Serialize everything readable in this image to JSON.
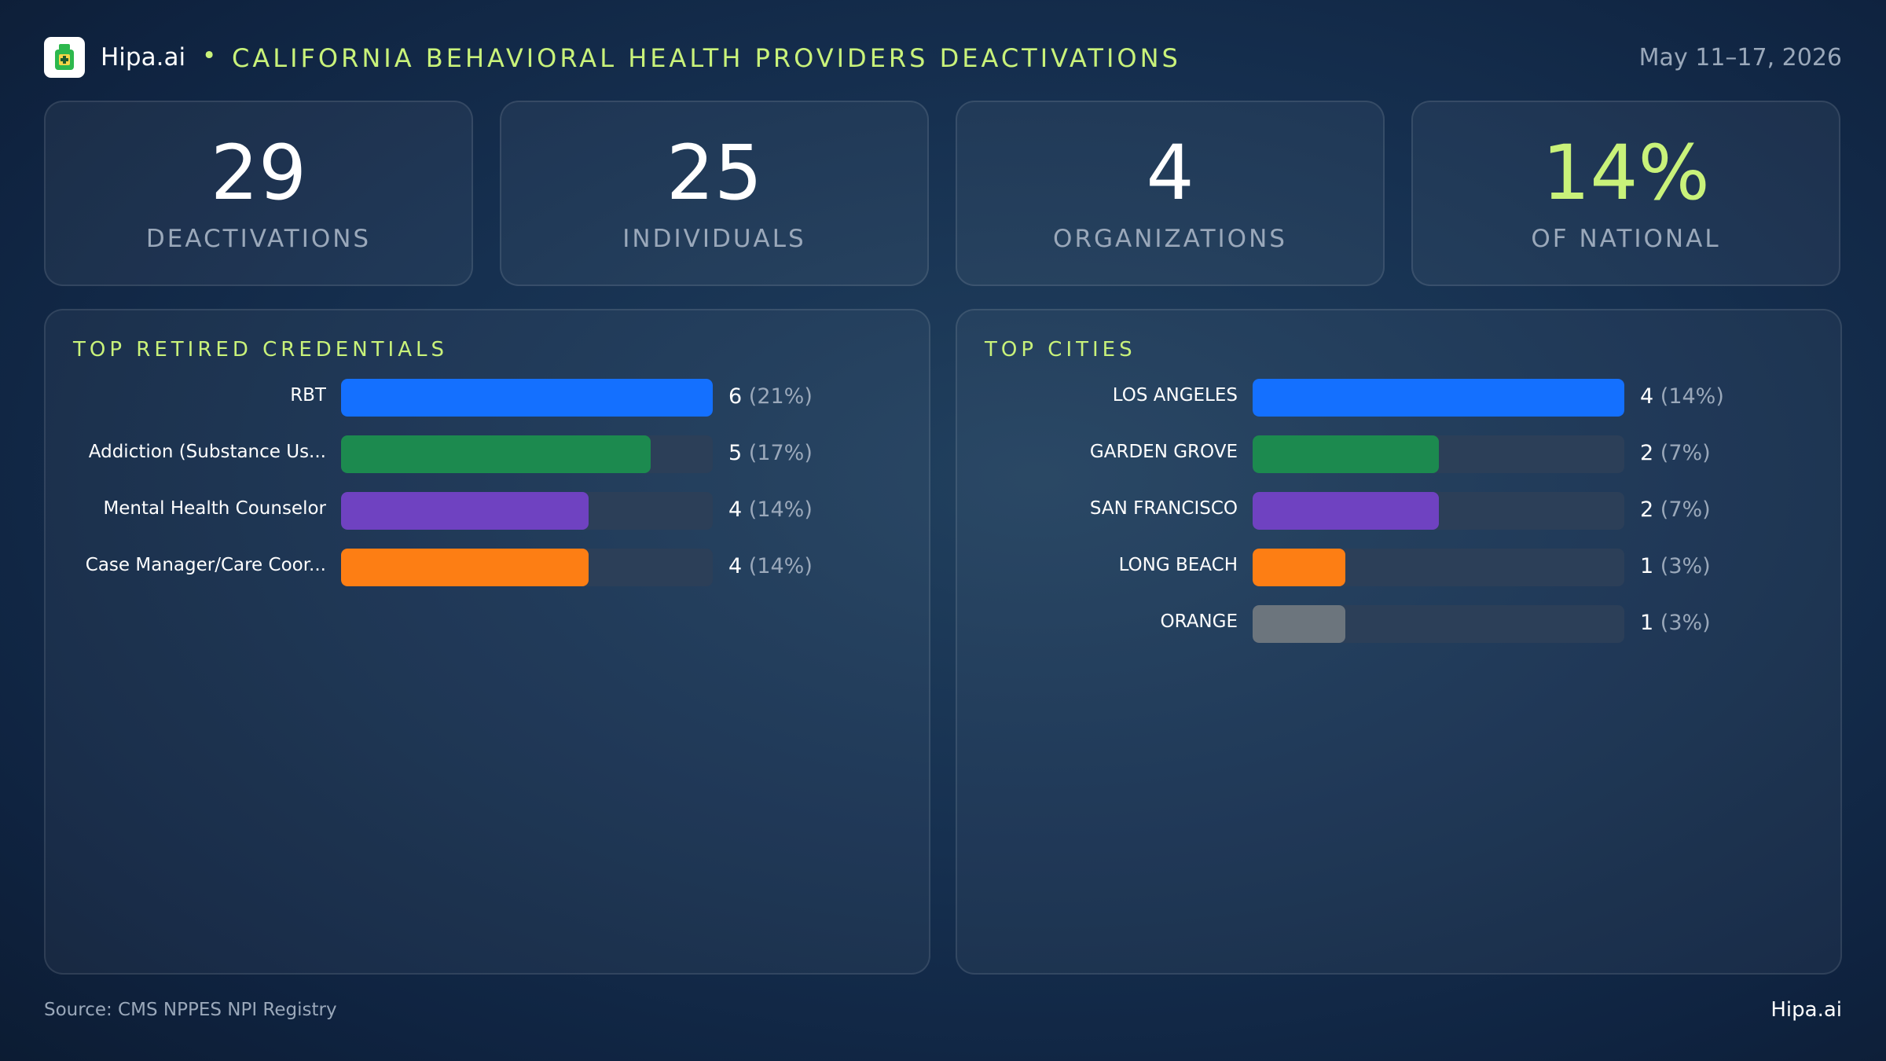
{
  "header": {
    "brand": "Hipa.ai",
    "separator": "•",
    "title": "CALIFORNIA BEHAVIORAL HEALTH PROVIDERS DEACTIVATIONS",
    "date": "May 11–17, 2026"
  },
  "kpis": [
    {
      "value": "29",
      "label": "DEACTIVATIONS"
    },
    {
      "value": "25",
      "label": "INDIVIDUALS"
    },
    {
      "value": "4",
      "label": "ORGANIZATIONS"
    },
    {
      "value": "14%",
      "label": "OF NATIONAL"
    }
  ],
  "colors": {
    "accent": "#c9f27a",
    "bar_blue": "#1470ff",
    "bar_green": "#1c8a4f",
    "bar_purple": "#6f42c1",
    "bar_orange": "#fd7e14",
    "bar_gray": "#6c757d",
    "track": "#2c3f58"
  },
  "chart_data": [
    {
      "type": "bar",
      "orientation": "horizontal",
      "title": "TOP RETIRED CREDENTIALS",
      "categories": [
        "RBT",
        "Addiction (Substance Us...",
        "Mental Health Counselor",
        "Case Manager/Care Coor..."
      ],
      "values": [
        6,
        5,
        4,
        4
      ],
      "value_labels": [
        "6",
        "5",
        "4",
        "4"
      ],
      "percent_labels": [
        "(21%)",
        "(17%)",
        "(14%)",
        "(14%)"
      ],
      "colors": [
        "#1470ff",
        "#1c8a4f",
        "#6f42c1",
        "#fd7e14"
      ],
      "xlim": [
        0,
        6
      ]
    },
    {
      "type": "bar",
      "orientation": "horizontal",
      "title": "TOP CITIES",
      "categories": [
        "LOS ANGELES",
        "GARDEN GROVE",
        "SAN FRANCISCO",
        "LONG BEACH",
        "ORANGE"
      ],
      "values": [
        4,
        2,
        2,
        1,
        1
      ],
      "value_labels": [
        "4",
        "2",
        "2",
        "1",
        "1"
      ],
      "percent_labels": [
        "(14%)",
        "(7%)",
        "(7%)",
        "(3%)",
        "(3%)"
      ],
      "colors": [
        "#1470ff",
        "#1c8a4f",
        "#6f42c1",
        "#fd7e14",
        "#6c757d"
      ],
      "xlim": [
        0,
        4
      ]
    }
  ],
  "footer": {
    "source": "Source: CMS NPPES NPI Registry",
    "brand": "Hipa.ai"
  }
}
